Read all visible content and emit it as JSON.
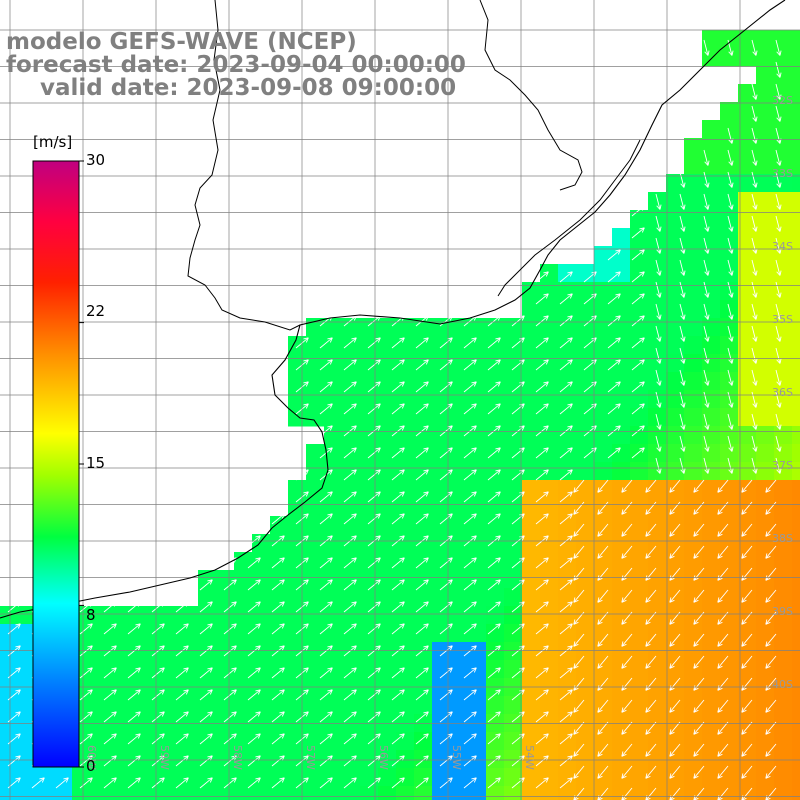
{
  "header": {
    "line1": "modelo GEFS-WAVE (NCEP)",
    "line2": "forecast date: 2023-09-04 00:00:00",
    "line3": "valid date: 2023-09-08 09:00:00"
  },
  "colorbar": {
    "unit": "[m/s]",
    "min": 0,
    "max": 30,
    "ticks": [
      "30",
      "22",
      "15",
      "8",
      "0"
    ],
    "tick_values": [
      30,
      22,
      15,
      8,
      0
    ]
  },
  "axes": {
    "lat_labels": [
      "32S",
      "33S",
      "34S",
      "35S",
      "36S",
      "37S",
      "38S",
      "39S",
      "40S"
    ],
    "lon_labels": [
      "60W",
      "59W",
      "58W",
      "57W",
      "56W",
      "55W",
      "54W"
    ]
  },
  "colors": {
    "land": "#ffffff",
    "grid": "#808080",
    "coast": "#000000",
    "arrows": "#ffffff",
    "header_text": "#808080"
  }
}
